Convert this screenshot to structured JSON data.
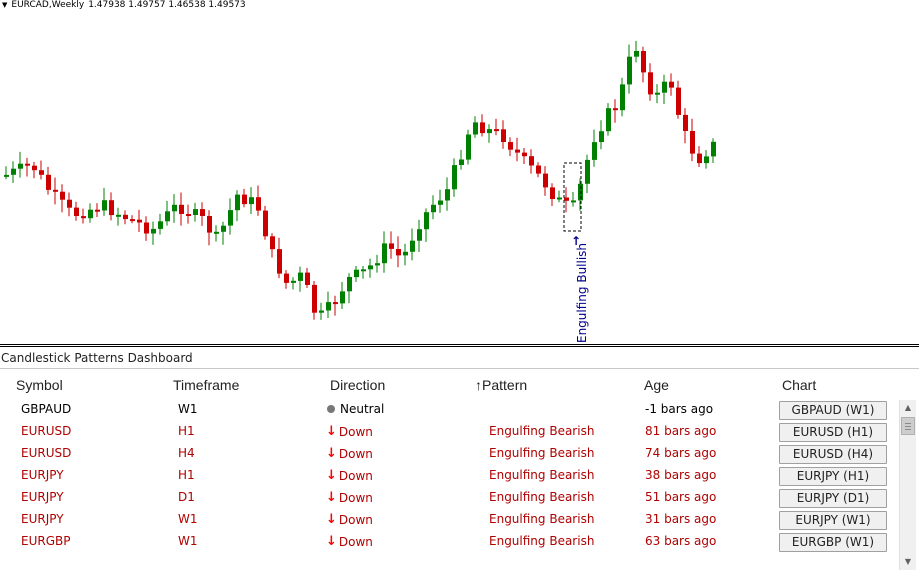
{
  "chart": {
    "symbol_title": "EURCAD,Weekly",
    "ohlc": "1.47938 1.49757 1.46538 1.49573",
    "pattern_annotation": "Engulfing Bullish",
    "up_color": "#008000",
    "down_color": "#cc0000",
    "annotation_color": "#00008b"
  },
  "dashboard": {
    "title": "Candlestick Patterns Dashboard",
    "headers": {
      "symbol": "Symbol",
      "timeframe": "Timeframe",
      "direction": "Direction",
      "pattern": "Pattern",
      "pattern_sort_icon": "↑",
      "age": "Age",
      "chart": "Chart"
    },
    "rows": [
      {
        "symbol": "GBPAUD",
        "timeframe": "W1",
        "direction": "Neutral",
        "direction_icon": "dot-icon",
        "pattern": "",
        "age": "-1 bars ago",
        "chart_button": "GBPAUD (W1)",
        "color": "#000000"
      },
      {
        "symbol": "EURUSD",
        "timeframe": "H1",
        "direction": "Down",
        "direction_icon": "arrow-down-icon",
        "pattern": "Engulfing Bearish",
        "age": "81 bars ago",
        "chart_button": "EURUSD (H1)",
        "color": "#b00000"
      },
      {
        "symbol": "EURUSD",
        "timeframe": "H4",
        "direction": "Down",
        "direction_icon": "arrow-down-icon",
        "pattern": "Engulfing Bearish",
        "age": "74 bars ago",
        "chart_button": "EURUSD (H4)",
        "color": "#b00000"
      },
      {
        "symbol": "EURJPY",
        "timeframe": "H1",
        "direction": "Down",
        "direction_icon": "arrow-down-icon",
        "pattern": "Engulfing Bearish",
        "age": "38 bars ago",
        "chart_button": "EURJPY (H1)",
        "color": "#b00000"
      },
      {
        "symbol": "EURJPY",
        "timeframe": "D1",
        "direction": "Down",
        "direction_icon": "arrow-down-icon",
        "pattern": "Engulfing Bearish",
        "age": "51 bars ago",
        "chart_button": "EURJPY (D1)",
        "color": "#b00000"
      },
      {
        "symbol": "EURJPY",
        "timeframe": "W1",
        "direction": "Down",
        "direction_icon": "arrow-down-icon",
        "pattern": "Engulfing Bearish",
        "age": "31 bars ago",
        "chart_button": "EURJPY (W1)",
        "color": "#b00000"
      },
      {
        "symbol": "EURGBP",
        "timeframe": "W1",
        "direction": "Down",
        "direction_icon": "arrow-down-icon",
        "pattern": "Engulfing Bearish",
        "age": "63 bars ago",
        "chart_button": "EURGBP (W1)",
        "color": "#b00000"
      }
    ],
    "arrow_down_color": "#ff0000"
  }
}
